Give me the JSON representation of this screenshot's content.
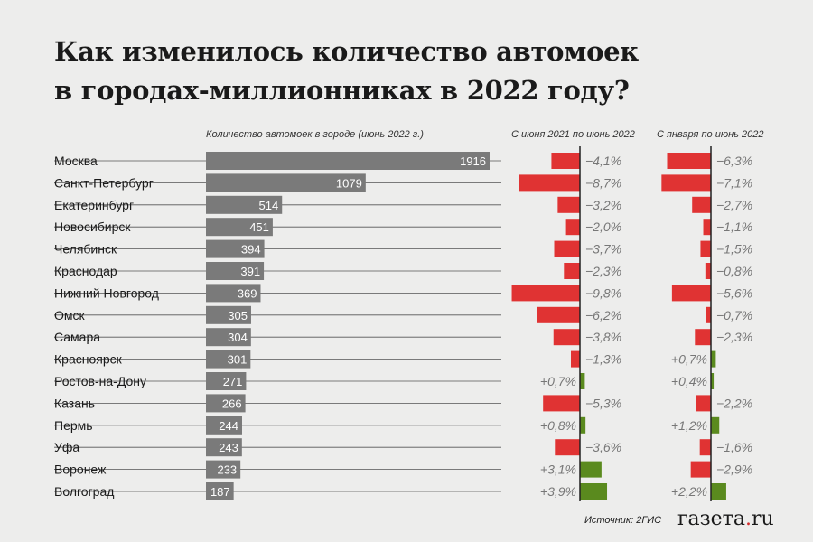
{
  "title_lines": [
    "Как изменилось количество автомоек",
    "в городах-миллионниках в 2022 году?"
  ],
  "colors": {
    "bar": "#7a7a7a",
    "neg": "#e03333",
    "pos": "#5a8a1e",
    "axis": "#222222"
  },
  "source": "Источник: 2ГИС",
  "logo": {
    "main": "газета",
    "dot": ".",
    "tld": "ru"
  },
  "chart_data": [
    {
      "type": "bar",
      "title": "Количество автомоек в городе (июнь 2022 г.)",
      "categories": [
        "Москва",
        "Санкт-Петербург",
        "Екатеринбург",
        "Новосибирск",
        "Челябинск",
        "Краснодар",
        "Нижний Новгород",
        "Омск",
        "Самара",
        "Красноярск",
        "Ростов-на-Дону",
        "Казань",
        "Пермь",
        "Уфа",
        "Воронеж",
        "Волгоград"
      ],
      "values": [
        1916,
        1079,
        514,
        451,
        394,
        391,
        369,
        305,
        304,
        301,
        271,
        266,
        244,
        243,
        233,
        187
      ]
    },
    {
      "type": "bar",
      "title": "С июня 2021 по июнь 2022",
      "unit": "%",
      "values": [
        -4.1,
        -8.7,
        -3.2,
        -2.0,
        -3.7,
        -2.3,
        -9.8,
        -6.2,
        -3.8,
        -1.3,
        0.7,
        -5.3,
        0.8,
        -3.6,
        3.1,
        3.9
      ]
    },
    {
      "type": "bar",
      "title": "С января по июнь 2022",
      "unit": "%",
      "values": [
        -6.3,
        -7.1,
        -2.7,
        -1.1,
        -1.5,
        -0.8,
        -5.6,
        -0.7,
        -2.3,
        0.7,
        0.4,
        -2.2,
        1.2,
        -1.6,
        -2.9,
        2.2
      ]
    }
  ]
}
